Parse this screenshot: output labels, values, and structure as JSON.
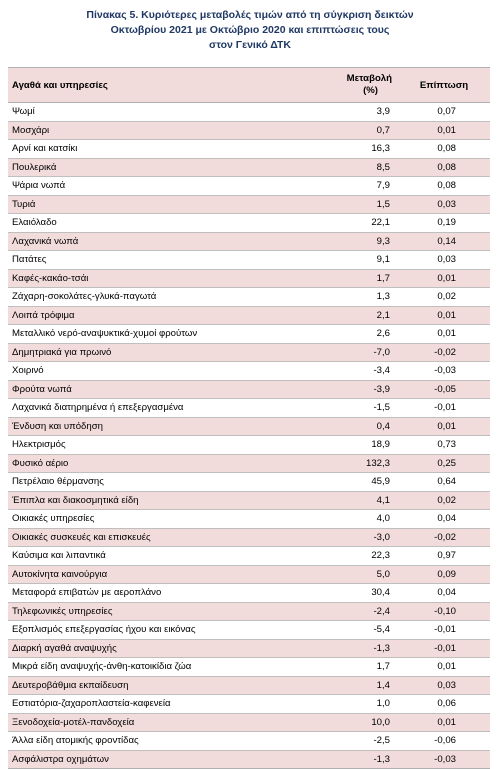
{
  "title": {
    "line1": "Πίνακας  5. Κυριότερες μεταβολές τιμών από τη σύγκριση δεικτών",
    "line2": "Οκτωβρίου 2021 με Οκτώβριο 2020 και επιπτώσεις τους",
    "line3": "στον Γενικό ΔΤΚ"
  },
  "table": {
    "headers": {
      "name": "Αγαθά και υπηρεσίες",
      "change_line1": "Μεταβολή",
      "change_line2": "(%)",
      "impact": "Επίπτωση"
    },
    "rows": [
      {
        "name": "Ψωμί",
        "change": "3,9",
        "impact": "0,07"
      },
      {
        "name": "Μοσχάρι",
        "change": "0,7",
        "impact": "0,01"
      },
      {
        "name": "Αρνί και κατσίκι",
        "change": "16,3",
        "impact": "0,08"
      },
      {
        "name": "Πουλερικά",
        "change": "8,5",
        "impact": "0,08"
      },
      {
        "name": "Ψάρια νωπά",
        "change": "7,9",
        "impact": "0,08"
      },
      {
        "name": "Τυριά",
        "change": "1,5",
        "impact": "0,03"
      },
      {
        "name": "Ελαιόλαδο",
        "change": "22,1",
        "impact": "0,19"
      },
      {
        "name": "Λαχανικά νωπά",
        "change": "9,3",
        "impact": "0,14"
      },
      {
        "name": "Πατάτες",
        "change": "9,1",
        "impact": "0,03"
      },
      {
        "name": "Καφές-κακάο-τσάι",
        "change": "1,7",
        "impact": "0,01"
      },
      {
        "name": "Ζάχαρη-σοκολάτες-γλυκά-παγωτά",
        "change": "1,3",
        "impact": "0,02"
      },
      {
        "name": "Λοιπά τρόφιμα",
        "change": "2,1",
        "impact": "0,01"
      },
      {
        "name": "Μεταλλικό νερό-αναψυκτικά-χυμοί φρούτων",
        "change": "2,6",
        "impact": "0,01"
      },
      {
        "name": "Δημητριακά για πρωινό",
        "change": "-7,0",
        "impact": "-0,02"
      },
      {
        "name": "Χοιρινό",
        "change": "-3,4",
        "impact": "-0,03"
      },
      {
        "name": "Φρούτα νωπά",
        "change": "-3,9",
        "impact": "-0,05"
      },
      {
        "name": "Λαχανικά διατηρημένα ή επεξεργασμένα",
        "change": "-1,5",
        "impact": "-0,01"
      },
      {
        "name": "Ένδυση και υπόδηση",
        "change": "0,4",
        "impact": "0,01"
      },
      {
        "name": "Ηλεκτρισμός",
        "change": "18,9",
        "impact": "0,73"
      },
      {
        "name": "Φυσικό αέριο",
        "change": "132,3",
        "impact": "0,25"
      },
      {
        "name": "Πετρέλαιο θέρμανσης",
        "change": "45,9",
        "impact": "0,64"
      },
      {
        "name": "Έπιπλα και διακοσμητικά είδη",
        "change": "4,1",
        "impact": "0,02"
      },
      {
        "name": "Οικιακές υπηρεσίες",
        "change": "4,0",
        "impact": "0,04"
      },
      {
        "name": "Οικιακές συσκευές και επισκευές",
        "change": "-3,0",
        "impact": "-0,02"
      },
      {
        "name": "Καύσιμα και λιπαντικά",
        "change": "22,3",
        "impact": "0,97"
      },
      {
        "name": "Αυτοκίνητα καινούργια",
        "change": "5,0",
        "impact": "0,09"
      },
      {
        "name": "Μεταφορά επιβατών με αεροπλάνο",
        "change": "30,4",
        "impact": "0,04"
      },
      {
        "name": "Τηλεφωνικές υπηρεσίες",
        "change": "-2,4",
        "impact": "-0,10"
      },
      {
        "name": "Εξοπλισμός επεξεργασίας ήχου και εικόνας",
        "change": "-5,4",
        "impact": "-0,01"
      },
      {
        "name": "Διαρκή αγαθά αναψυχής",
        "change": "-1,3",
        "impact": "-0,01"
      },
      {
        "name": "Μικρά είδη αναψυχής-άνθη-κατοικίδια ζώα",
        "change": "1,7",
        "impact": "0,01"
      },
      {
        "name": "Δευτεροβάθμια εκπαίδευση",
        "change": "1,4",
        "impact": "0,03"
      },
      {
        "name": "Εστιατόρια-ζαχαροπλαστεία-καφενεία",
        "change": "1,0",
        "impact": "0,06"
      },
      {
        "name": "Ξενοδοχεία-μοτέλ-πανδοχεία",
        "change": "10,0",
        "impact": "0,01"
      },
      {
        "name": "Άλλα είδη ατομικής φροντίδας",
        "change": "-2,5",
        "impact": "-0,06"
      },
      {
        "name": "Ασφάλιστρα οχημάτων",
        "change": "-1,3",
        "impact": "-0,03"
      }
    ]
  },
  "colors": {
    "title": "#1f3864",
    "header_bg": "#f2dcdb",
    "stripe_bg": "#f2dcdb",
    "rule": "#b0b0b0"
  }
}
